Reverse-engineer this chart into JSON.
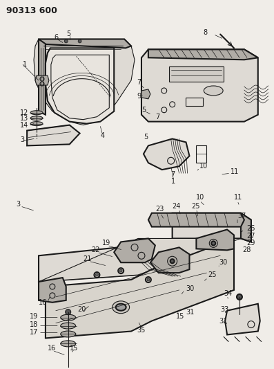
{
  "title": "90313 600",
  "bg_color": "#f0ede8",
  "line_color": "#1a1a1a",
  "text_color": "#1a1a1a",
  "figsize": [
    3.97,
    5.33
  ],
  "dpi": 100,
  "gray_fill": "#c8c4be",
  "light_gray": "#dedad4",
  "medium_gray": "#b0aca6"
}
